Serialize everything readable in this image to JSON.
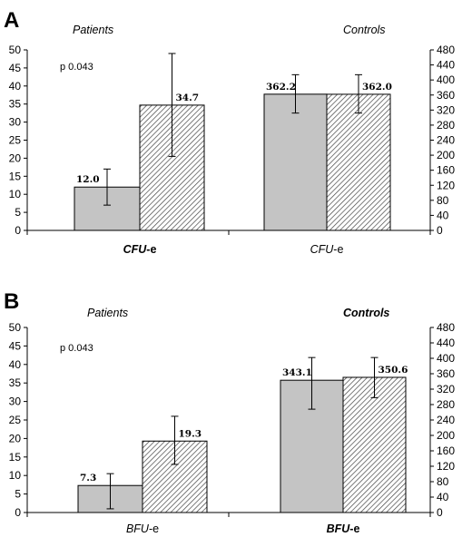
{
  "colors": {
    "solid": "#c4c4c4",
    "hatch": "#444444",
    "axis": "#000000"
  },
  "chart_data": [
    {
      "type": "bar",
      "panel": "A",
      "p_value": "p 0.043",
      "group_labels": [
        "Patients",
        "Controls"
      ],
      "group_label_bold": [
        false,
        false
      ],
      "xlabel_main": [
        "CFU",
        "CFU"
      ],
      "xlabel_suffix": [
        "-e",
        "-e"
      ],
      "xlabel_bold": [
        true,
        false
      ],
      "left_axis": {
        "ylim": [
          0,
          50
        ],
        "ticks": [
          0,
          5,
          10,
          15,
          20,
          25,
          30,
          35,
          40,
          45,
          50
        ]
      },
      "right_axis": {
        "ylim": [
          0,
          480
        ],
        "ticks": [
          0,
          40,
          80,
          120,
          160,
          200,
          240,
          280,
          320,
          360,
          400,
          440,
          480
        ]
      },
      "bars": [
        {
          "group": "Patients",
          "pattern": "solid",
          "axis": "left",
          "value": 12.0,
          "error_low": 7.0,
          "error_high": 17.0,
          "label": "12.0"
        },
        {
          "group": "Patients",
          "pattern": "hatched",
          "axis": "left",
          "value": 34.7,
          "error_low": 20.5,
          "error_high": 49.0,
          "label": "34.7"
        },
        {
          "group": "Controls",
          "pattern": "solid",
          "axis": "right",
          "value": 362.2,
          "error_low": 312,
          "error_high": 414,
          "label": "362.2"
        },
        {
          "group": "Controls",
          "pattern": "hatched",
          "axis": "right",
          "value": 362.0,
          "error_low": 312,
          "error_high": 414,
          "label": "362.0"
        }
      ],
      "grid": false
    },
    {
      "type": "bar",
      "panel": "B",
      "p_value": "p 0.043",
      "group_labels": [
        "Patients",
        "Controls"
      ],
      "group_label_bold": [
        false,
        true
      ],
      "xlabel_main": [
        "BFU",
        "BFU"
      ],
      "xlabel_suffix": [
        "-e",
        "-e"
      ],
      "xlabel_bold": [
        false,
        true
      ],
      "left_axis": {
        "ylim": [
          0,
          50
        ],
        "ticks": [
          0,
          5,
          10,
          15,
          20,
          25,
          30,
          35,
          40,
          45,
          50
        ]
      },
      "right_axis": {
        "ylim": [
          0,
          480
        ],
        "ticks": [
          0,
          40,
          80,
          120,
          160,
          200,
          240,
          280,
          320,
          360,
          400,
          440,
          480
        ]
      },
      "bars": [
        {
          "group": "Patients",
          "pattern": "solid",
          "axis": "left",
          "value": 7.3,
          "error_low": 1.0,
          "error_high": 10.5,
          "label": "7.3"
        },
        {
          "group": "Patients",
          "pattern": "hatched",
          "axis": "left",
          "value": 19.3,
          "error_low": 13.0,
          "error_high": 26.0,
          "label": "19.3"
        },
        {
          "group": "Controls",
          "pattern": "solid",
          "axis": "right",
          "value": 343.1,
          "error_low": 268,
          "error_high": 402,
          "label": "343.1"
        },
        {
          "group": "Controls",
          "pattern": "hatched",
          "axis": "right",
          "value": 350.6,
          "error_low": 298,
          "error_high": 402,
          "label": "350.6"
        }
      ],
      "grid": false
    }
  ]
}
